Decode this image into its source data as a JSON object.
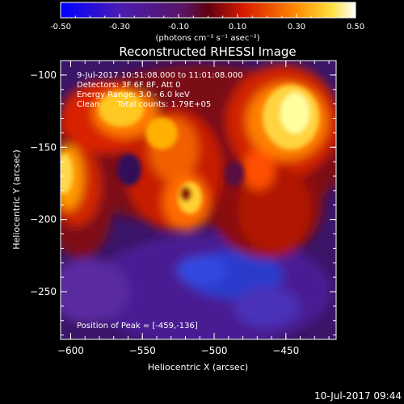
{
  "colorbar": {
    "tick_labels": [
      "-0.50",
      "-0.30",
      "-0.10",
      "0.10",
      "0.30",
      "0.50"
    ],
    "range": [
      -0.5,
      0.5
    ],
    "unit_label": "(photons cm⁻² s⁻¹ asec⁻²)"
  },
  "plot": {
    "title": "Reconstructed RHESSI Image",
    "time_range": "9-Jul-2017 10:51:08.000 to 11:01:08.000",
    "detectors": "Detectors: 3F 6F 8F, Att 0",
    "energy_range": "Energy Range: 3.0 - 6.0 keV",
    "clean_label": "Clean",
    "total_counts": "Total counts: 1.79E+05",
    "peak_position": "Position of Peak = [-459,-136]",
    "x_label": "Heliocentric X (arcsec)",
    "y_label": "Heliocentric Y (arcsec)",
    "x_ticks": [
      "-600",
      "-550",
      "-500",
      "-450"
    ],
    "y_ticks": [
      "-100",
      "-150",
      "-200",
      "-250"
    ],
    "x_range": [
      -607,
      -415
    ],
    "y_range": [
      -283,
      -90
    ]
  },
  "footer": {
    "timestamp": "10-Jul-2017 09:44"
  },
  "colors": {
    "background": "#000000",
    "foreground": "#ffffff"
  }
}
